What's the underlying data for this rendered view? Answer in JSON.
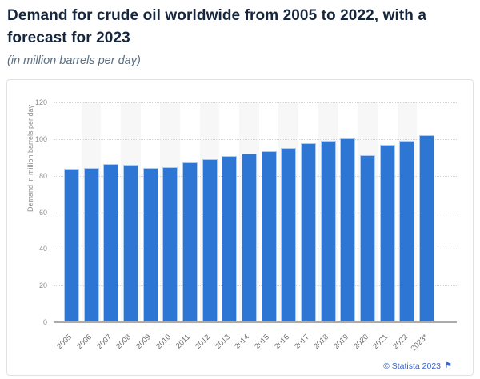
{
  "header": {
    "title": "Demand for crude oil worldwide from 2005 to 2022, with a forecast for 2023",
    "subtitle": "(in million barrels per day)"
  },
  "footer": {
    "copyright": "© Statista 2023",
    "flag_icon": "⚑"
  },
  "colors": {
    "bar": "#2e76d3",
    "bar_edge": "#aecbf0",
    "title_text": "#16273d",
    "subtitle_text": "#5a6e82",
    "axis_text": "#8e8e8e",
    "tick_text": "#6b6b6b",
    "gridline": "#d4d4d4",
    "baseline": "#ababab",
    "column_band": "#f7f7f8",
    "card_border": "#e2e2e2",
    "statista_blue": "#3c64c4"
  },
  "chart_data": {
    "type": "bar",
    "title": "Demand for crude oil worldwide from 2005 to 2022, with a forecast for 2023",
    "subtitle": "(in million barrels per day)",
    "xlabel": "",
    "ylabel": "Demand in million barrels per day",
    "categories": [
      "2005",
      "2006",
      "2007",
      "2008",
      "2009",
      "2010",
      "2011",
      "2012",
      "2013",
      "2014",
      "2015",
      "2016",
      "2017",
      "2018",
      "2019",
      "2020",
      "2021",
      "2022",
      "2023*"
    ],
    "values": [
      83.6,
      84.3,
      86.5,
      86.0,
      84.1,
      84.7,
      87.2,
      89.0,
      90.9,
      91.9,
      93.4,
      95.1,
      97.7,
      99.0,
      100.3,
      91.0,
      96.9,
      99.2,
      101.9
    ],
    "ylim": [
      0,
      120
    ],
    "yticks": [
      0,
      20,
      40,
      60,
      80,
      100,
      120
    ],
    "grid": "horizontal-dotted",
    "column_bands": "alternating-odd-columns",
    "legend": "none"
  }
}
